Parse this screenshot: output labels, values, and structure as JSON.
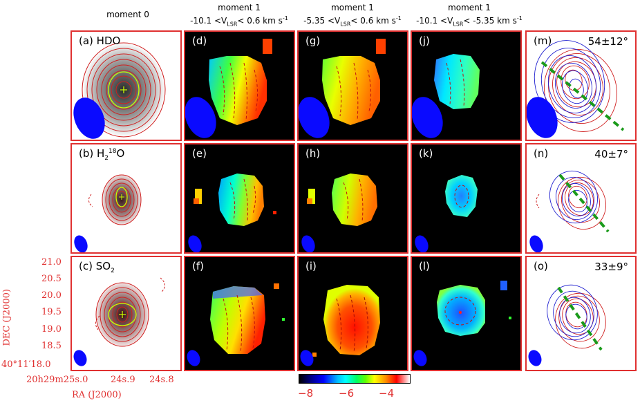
{
  "headers": {
    "moment0": "moment 0",
    "col_d_line1": "moment 1",
    "col_d_line2": "-10.1 <V",
    "col_d_sub": "LSR",
    "col_d_line3": "< 0.6 km s",
    "col_g_line1": "moment 1",
    "col_g_line2": "-5.35 <V",
    "col_g_sub": "LSR",
    "col_g_line3": "< 0.6 km s",
    "col_j_line1": "moment 1",
    "col_j_line2": "-10.1 <V",
    "col_j_sub": "LSR",
    "col_j_line3": "< -5.35 km s",
    "exp": "-1"
  },
  "panels": {
    "a": "(a) HDO",
    "b_pre": "(b) H",
    "b_sub": "2",
    "b_sup": "18",
    "b_post": "O",
    "c_pre": "(c) SO",
    "c_sub": "2",
    "d": "(d)",
    "e": "(e)",
    "f": "(f)",
    "g": "(g)",
    "h": "(h)",
    "i": "(i)",
    "j": "(j)",
    "k": "(k)",
    "l": "(l)",
    "m": "(m)",
    "n": "(n)",
    "o": "(o)"
  },
  "angles": {
    "m": "54±12°",
    "n": "40±7°",
    "o": "33±9°"
  },
  "axes": {
    "ylabel": "DEC (J2000)",
    "xlabel": "RA (J2000)",
    "yticks": [
      "21.0",
      "20.5",
      "20.0",
      "19.5",
      "19.0",
      "18.5"
    ],
    "y_origin": "40°11′18.0",
    "x_origin": "20h29m25s.0",
    "x_mid": "24s.9",
    "x_end": "24s.8"
  },
  "colorbar": {
    "ticks": [
      "−8",
      "−6",
      "−4"
    ]
  }
}
